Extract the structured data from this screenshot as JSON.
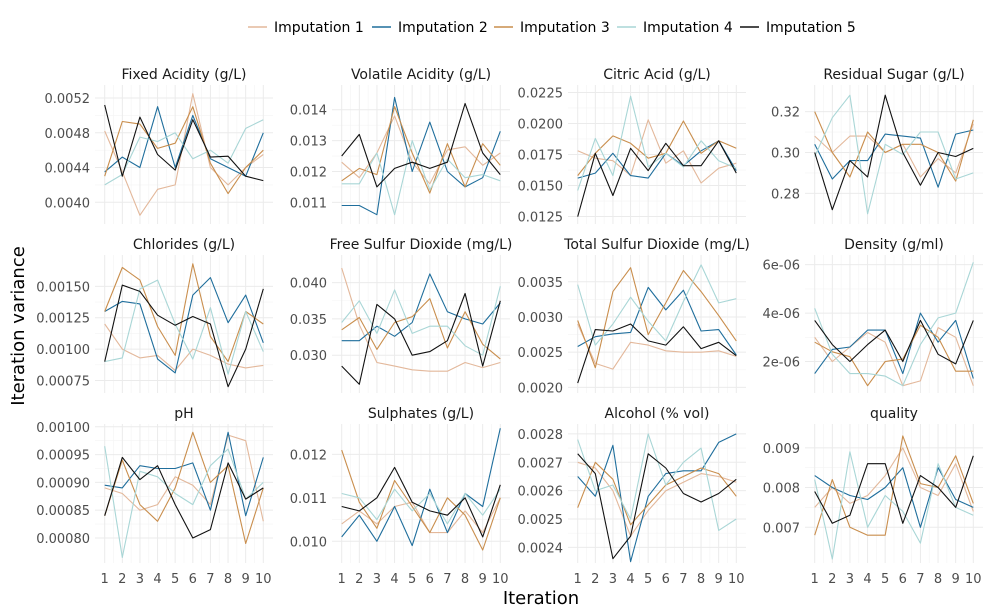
{
  "chart_data": {
    "type": "line",
    "xlabel": "Iteration",
    "ylabel": "Iteration variance",
    "x": [
      1,
      2,
      3,
      4,
      5,
      6,
      7,
      8,
      9,
      10
    ],
    "x_ticks": [
      "1",
      "2",
      "3",
      "4",
      "5",
      "6",
      "7",
      "8",
      "9",
      "10"
    ],
    "legend_position": "top",
    "grid": true,
    "series": [
      {
        "name": "Imputation 1",
        "color": "#e3b89b"
      },
      {
        "name": "Imputation 2",
        "color": "#1f6e9c"
      },
      {
        "name": "Imputation 3",
        "color": "#c98e4d"
      },
      {
        "name": "Imputation 4",
        "color": "#a9d6d6"
      },
      {
        "name": "Imputation 5",
        "color": "#111111"
      }
    ],
    "panels": [
      {
        "title": "Fixed Acidity (g/L)",
        "ylim": [
          0.00375,
          0.00535
        ],
        "yticks": [
          0.004,
          0.0044,
          0.0048,
          0.0052
        ],
        "ytick_labels": [
          "0.0040",
          "0.0044",
          "0.0048",
          "0.0052"
        ],
        "values": [
          [
            0.00482,
            0.00435,
            0.00385,
            0.00415,
            0.0042,
            0.00525,
            0.0044,
            0.0042,
            0.0044,
            0.00455
          ],
          [
            0.00435,
            0.00452,
            0.0044,
            0.0051,
            0.0044,
            0.005,
            0.0045,
            0.0044,
            0.0043,
            0.0048
          ],
          [
            0.0043,
            0.00493,
            0.0049,
            0.00462,
            0.00468,
            0.0051,
            0.00445,
            0.0041,
            0.0044,
            0.0046
          ],
          [
            0.0042,
            0.00432,
            0.00475,
            0.0047,
            0.0048,
            0.0045,
            0.0046,
            0.00445,
            0.00485,
            0.00495
          ],
          [
            0.00512,
            0.0043,
            0.00498,
            0.00455,
            0.00437,
            0.00495,
            0.00452,
            0.00453,
            0.0043,
            0.00425
          ]
        ]
      },
      {
        "title": "Volatile Acidity (g/L)",
        "ylim": [
          0.0103,
          0.0148
        ],
        "yticks": [
          0.011,
          0.012,
          0.013,
          0.014
        ],
        "ytick_labels": [
          "0.011",
          "0.012",
          "0.013",
          "0.014"
        ],
        "values": [
          [
            0.0123,
            0.0118,
            0.0126,
            0.0138,
            0.0123,
            0.0116,
            0.0127,
            0.0128,
            0.0122,
            0.0126
          ],
          [
            0.0109,
            0.0109,
            0.0106,
            0.0144,
            0.012,
            0.0136,
            0.012,
            0.0115,
            0.0118,
            0.0133
          ],
          [
            0.0117,
            0.0121,
            0.0119,
            0.0141,
            0.0126,
            0.0113,
            0.0129,
            0.0115,
            0.0129,
            0.0122
          ],
          [
            0.0116,
            0.0116,
            0.0126,
            0.0106,
            0.013,
            0.0114,
            0.0124,
            0.0118,
            0.0119,
            0.0117
          ],
          [
            0.0125,
            0.0132,
            0.0115,
            0.0121,
            0.0123,
            0.0121,
            0.0123,
            0.0142,
            0.0126,
            0.0119
          ]
        ]
      },
      {
        "title": "Citric Acid (g/L)",
        "ylim": [
          0.0119,
          0.0231
        ],
        "yticks": [
          0.0125,
          0.015,
          0.0175,
          0.02,
          0.0225
        ],
        "ytick_labels": [
          "0.0125",
          "0.0150",
          "0.0175",
          "0.0200",
          "0.0225"
        ],
        "values": [
          [
            0.0178,
            0.0172,
            0.017,
            0.0158,
            0.0203,
            0.0168,
            0.0178,
            0.0152,
            0.0164,
            0.0168
          ],
          [
            0.0156,
            0.016,
            0.0176,
            0.0158,
            0.0156,
            0.0176,
            0.0166,
            0.0178,
            0.0186,
            0.0162
          ],
          [
            0.0158,
            0.0176,
            0.019,
            0.0184,
            0.0172,
            0.0176,
            0.0202,
            0.0176,
            0.0186,
            0.018
          ],
          [
            0.0146,
            0.0188,
            0.0158,
            0.0222,
            0.0165,
            0.0176,
            0.0165,
            0.0186,
            0.017,
            0.0164
          ],
          [
            0.0125,
            0.0176,
            0.0142,
            0.018,
            0.0162,
            0.0184,
            0.0166,
            0.0166,
            0.0186,
            0.016
          ]
        ]
      },
      {
        "title": "Residual Sugar (g/L)",
        "ylim": [
          0.265,
          0.333
        ],
        "yticks": [
          0.28,
          0.3,
          0.32
        ],
        "ytick_labels": [
          "0.28",
          "0.30",
          "0.32"
        ],
        "values": [
          [
            0.308,
            0.3,
            0.308,
            0.308,
            0.3,
            0.304,
            0.288,
            0.297,
            0.29,
            0.314
          ],
          [
            0.304,
            0.287,
            0.296,
            0.296,
            0.309,
            0.308,
            0.307,
            0.283,
            0.309,
            0.311
          ],
          [
            0.32,
            0.3,
            0.288,
            0.31,
            0.3,
            0.304,
            0.304,
            0.3,
            0.286,
            0.316
          ],
          [
            0.298,
            0.317,
            0.328,
            0.27,
            0.304,
            0.299,
            0.31,
            0.31,
            0.287,
            0.29
          ],
          [
            0.3,
            0.272,
            0.296,
            0.288,
            0.328,
            0.3,
            0.284,
            0.3,
            0.298,
            0.302
          ]
        ]
      },
      {
        "title": "Chlorides (g/L)",
        "ylim": [
          0.00065,
          0.00175
        ],
        "yticks": [
          0.00075,
          0.001,
          0.00125,
          0.0015
        ],
        "ytick_labels": [
          "0.00075",
          "0.00100",
          "0.00125",
          "0.00150"
        ],
        "values": [
          [
            0.0012,
            0.001,
            0.00093,
            0.00095,
            0.00083,
            0.001,
            0.00095,
            0.00088,
            0.00085,
            0.00087
          ],
          [
            0.0013,
            0.00138,
            0.00136,
            0.00092,
            0.00081,
            0.00143,
            0.00157,
            0.00121,
            0.00143,
            0.00105
          ],
          [
            0.0013,
            0.00165,
            0.00155,
            0.00118,
            0.00095,
            0.00168,
            0.0011,
            0.0009,
            0.0013,
            0.0012
          ],
          [
            0.0009,
            0.00093,
            0.00148,
            0.00155,
            0.0012,
            0.00092,
            0.00133,
            0.0008,
            0.0013,
            0.00098
          ],
          [
            0.0009,
            0.00151,
            0.00146,
            0.00127,
            0.00119,
            0.00126,
            0.0012,
            0.0007,
            0.001,
            0.00148
          ]
        ]
      },
      {
        "title": "Free Sulfur Dioxide (mg/L)",
        "ylim": [
          0.0248,
          0.0438
        ],
        "yticks": [
          0.03,
          0.035,
          0.04
        ],
        "ytick_labels": [
          "0.030",
          "0.035",
          "0.040"
        ],
        "values": [
          [
            0.042,
            0.0342,
            0.029,
            0.0285,
            0.028,
            0.0278,
            0.0278,
            0.029,
            0.0283,
            0.029
          ],
          [
            0.032,
            0.032,
            0.034,
            0.0326,
            0.0345,
            0.0412,
            0.036,
            0.035,
            0.0343,
            0.0372
          ],
          [
            0.0335,
            0.0352,
            0.0308,
            0.0345,
            0.0353,
            0.0378,
            0.031,
            0.036,
            0.0315,
            0.0295
          ],
          [
            0.0345,
            0.0375,
            0.033,
            0.039,
            0.033,
            0.034,
            0.034,
            0.0313,
            0.03,
            0.0395
          ],
          [
            0.0285,
            0.026,
            0.037,
            0.035,
            0.03,
            0.0305,
            0.032,
            0.0385,
            0.0285,
            0.0375
          ]
        ]
      },
      {
        "title": "Total Sulfur Dioxide (mg/L)",
        "ylim": [
          0.00192,
          0.00388
        ],
        "yticks": [
          0.002,
          0.0025,
          0.003,
          0.0035
        ],
        "ytick_labels": [
          "0.0020",
          "0.0025",
          "0.0030",
          "0.0035"
        ],
        "values": [
          [
            0.0029,
            0.00234,
            0.00226,
            0.00264,
            0.0026,
            0.00252,
            0.0025,
            0.0025,
            0.00252,
            0.00244
          ],
          [
            0.00258,
            0.00272,
            0.00276,
            0.00278,
            0.00342,
            0.0031,
            0.00338,
            0.0028,
            0.00282,
            0.00246
          ],
          [
            0.00295,
            0.00228,
            0.00336,
            0.0037,
            0.00275,
            0.0032,
            0.00366,
            0.00336,
            0.00302,
            0.00266
          ],
          [
            0.00346,
            0.0026,
            0.0029,
            0.00328,
            0.00294,
            0.00266,
            0.00322,
            0.00374,
            0.0032,
            0.00326
          ],
          [
            0.00206,
            0.00282,
            0.0028,
            0.0029,
            0.00266,
            0.0026,
            0.00286,
            0.00255,
            0.00264,
            0.00245
          ]
        ]
      },
      {
        "title": "Density (g/ml)",
        "ylim": [
          7e-07,
          6.4e-06
        ],
        "yticks": [
          2e-06,
          4e-06,
          6e-06
        ],
        "ytick_labels": [
          "2e-06",
          "4e-06",
          "6e-06"
        ],
        "values": [
          [
            3e-06,
            2e-06,
            2.6e-06,
            3.2e-06,
            2.8e-06,
            1e-06,
            1.2e-06,
            3.4e-06,
            3e-06,
            1e-06
          ],
          [
            1.5e-06,
            2.5e-06,
            2.6e-06,
            3.3e-06,
            3.3e-06,
            1.5e-06,
            4e-06,
            2.8e-06,
            3.7e-06,
            1.3e-06
          ],
          [
            2.8e-06,
            2.4e-06,
            2.2e-06,
            1e-06,
            2e-06,
            2.1e-06,
            3.5e-06,
            3e-06,
            1.6e-06,
            1.6e-06
          ],
          [
            4.2e-06,
            2.3e-06,
            1.5e-06,
            1.5e-06,
            1.4e-06,
            1e-06,
            2.7e-06,
            3.8e-06,
            4e-06,
            6.1e-06
          ],
          [
            3.7e-06,
            2.7e-06,
            2e-06,
            2.7e-06,
            3.3e-06,
            2e-06,
            3.7e-06,
            2.3e-06,
            1.9e-06,
            3.7e-06
          ]
        ]
      },
      {
        "title": "pH",
        "ylim": [
          0.000755,
          0.001005
        ],
        "yticks": [
          0.0008,
          0.00085,
          0.0009,
          0.00095,
          0.001
        ],
        "ytick_labels": [
          "0.00080",
          "0.00085",
          "0.00090",
          "0.00095",
          "0.00100"
        ],
        "values": [
          [
            0.00089,
            0.00088,
            0.00085,
            0.00086,
            0.00091,
            0.000895,
            0.00086,
            0.000985,
            0.000975,
            0.00083
          ],
          [
            0.000895,
            0.00089,
            0.00093,
            0.000925,
            0.000925,
            0.000935,
            0.00085,
            0.00099,
            0.00084,
            0.000945
          ],
          [
            0.00084,
            0.00094,
            0.00086,
            0.00083,
            0.00089,
            0.00099,
            0.0009,
            0.00093,
            0.00079,
            0.00089
          ],
          [
            0.000965,
            0.000765,
            0.00092,
            0.00091,
            0.00088,
            0.00086,
            0.00093,
            0.00096,
            0.00087,
            0.0009
          ],
          [
            0.00084,
            0.000945,
            0.000905,
            0.00093,
            0.00086,
            0.0008,
            0.000815,
            0.000935,
            0.00087,
            0.00089
          ]
        ]
      },
      {
        "title": "Sulphates (g/L)",
        "ylim": [
          0.0095,
          0.0127
        ],
        "yticks": [
          0.01,
          0.011,
          0.012
        ],
        "ytick_labels": [
          "0.010",
          "0.011",
          "0.012"
        ],
        "values": [
          [
            0.0104,
            0.0107,
            0.0104,
            0.0108,
            0.0109,
            0.0102,
            0.0102,
            0.0107,
            0.0102,
            0.011
          ],
          [
            0.0101,
            0.0106,
            0.01,
            0.0108,
            0.0099,
            0.0112,
            0.0102,
            0.0111,
            0.0108,
            0.0126
          ],
          [
            0.0121,
            0.0109,
            0.0103,
            0.0114,
            0.0108,
            0.0102,
            0.011,
            0.0106,
            0.0098,
            0.011
          ],
          [
            0.0111,
            0.011,
            0.0105,
            0.0112,
            0.0107,
            0.0111,
            0.0104,
            0.0111,
            0.0106,
            0.0112
          ],
          [
            0.0108,
            0.0107,
            0.011,
            0.0117,
            0.0109,
            0.0107,
            0.0106,
            0.011,
            0.0101,
            0.0113
          ]
        ]
      },
      {
        "title": "Alcohol (% vol)",
        "ylim": [
          0.002345,
          0.002835
        ],
        "yticks": [
          0.0024,
          0.0025,
          0.0026,
          0.0027,
          0.0028
        ],
        "ytick_labels": [
          "0.0024",
          "0.0025",
          "0.0026",
          "0.0027",
          "0.0028"
        ],
        "values": [
          [
            0.0027,
            0.00268,
            0.0026,
            0.00244,
            0.00253,
            0.0026,
            0.00263,
            0.00266,
            0.00265,
            0.00263
          ],
          [
            0.00265,
            0.00258,
            0.00276,
            0.00235,
            0.00258,
            0.00266,
            0.00267,
            0.00267,
            0.00277,
            0.0028
          ],
          [
            0.00254,
            0.0027,
            0.00264,
            0.00248,
            0.00255,
            0.00262,
            0.00265,
            0.00268,
            0.00266,
            0.00258
          ],
          [
            0.00278,
            0.0026,
            0.00262,
            0.0025,
            0.0028,
            0.00262,
            0.0027,
            0.00275,
            0.00246,
            0.0025
          ],
          [
            0.00273,
            0.00266,
            0.00236,
            0.00244,
            0.00273,
            0.00268,
            0.00259,
            0.00256,
            0.00259,
            0.00264
          ]
        ]
      },
      {
        "title": "quality",
        "ylim": [
          0.0061,
          0.0096
        ],
        "yticks": [
          0.007,
          0.008,
          0.009
        ],
        "ytick_labels": [
          "0.007",
          "0.008",
          "0.009"
        ],
        "values": [
          [
            0.0075,
            0.008,
            0.0076,
            0.0078,
            0.0083,
            0.009,
            0.008,
            0.0078,
            0.0086,
            0.0074
          ],
          [
            0.0083,
            0.008,
            0.0078,
            0.0077,
            0.008,
            0.0085,
            0.007,
            0.0085,
            0.0077,
            0.0075
          ],
          [
            0.0068,
            0.0082,
            0.007,
            0.0068,
            0.0068,
            0.0093,
            0.0081,
            0.008,
            0.0088,
            0.0076
          ],
          [
            0.0082,
            0.0062,
            0.0089,
            0.007,
            0.0078,
            0.0074,
            0.0066,
            0.0086,
            0.0075,
            0.0073
          ],
          [
            0.0079,
            0.0071,
            0.0073,
            0.0086,
            0.0086,
            0.0071,
            0.0083,
            0.008,
            0.0075,
            0.0088
          ]
        ]
      }
    ]
  }
}
